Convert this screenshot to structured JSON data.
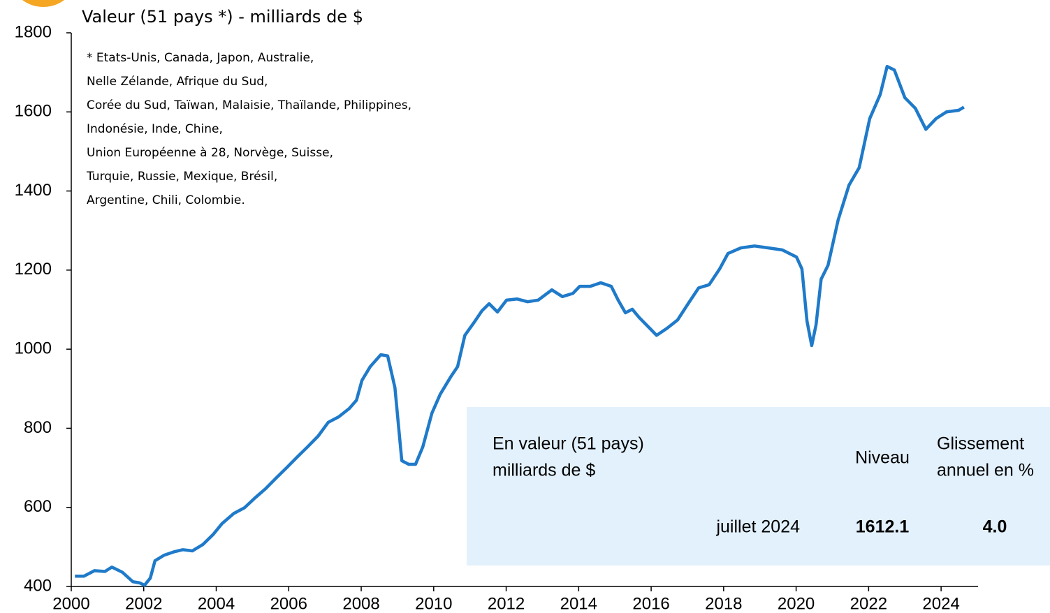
{
  "chart_data": {
    "type": "line",
    "title": "Valeur (51 pays *) - milliards de $",
    "note": [
      "* Etats-Unis, Canada, Japon, Australie,",
      "Nelle Zélande, Afrique du Sud,",
      "Corée du Sud, Taïwan, Malaisie, Thaïlande, Philippines,",
      "Indonésie, Inde, Chine,",
      "Union Européenne à 28, Norvège, Suisse,",
      "Turquie, Russie, Mexique, Brésil,",
      "Argentine, Chili, Colombie."
    ],
    "x": [
      2000.1,
      2000.35,
      2000.64,
      2000.93,
      2001.12,
      2001.41,
      2001.7,
      2001.89,
      2002.02,
      2002.18,
      2002.31,
      2002.56,
      2002.85,
      2003.08,
      2003.34,
      2003.63,
      2003.92,
      2004.16,
      2004.49,
      2004.78,
      2005.07,
      2005.36,
      2005.65,
      2005.94,
      2006.23,
      2006.52,
      2006.81,
      2007.09,
      2007.38,
      2007.67,
      2007.87,
      2008.02,
      2008.25,
      2008.54,
      2008.73,
      2008.93,
      2009.12,
      2009.31,
      2009.5,
      2009.7,
      2009.95,
      2010.18,
      2010.47,
      2010.66,
      2010.86,
      2011.14,
      2011.33,
      2011.53,
      2011.76,
      2012.01,
      2012.3,
      2012.59,
      2012.88,
      2013.26,
      2013.55,
      2013.84,
      2014.03,
      2014.32,
      2014.61,
      2014.9,
      2015.09,
      2015.29,
      2015.48,
      2015.67,
      2015.96,
      2016.15,
      2016.44,
      2016.73,
      2017.02,
      2017.31,
      2017.6,
      2017.89,
      2018.12,
      2018.47,
      2018.85,
      2019.24,
      2019.62,
      2020.01,
      2020.16,
      2020.3,
      2020.43,
      2020.55,
      2020.69,
      2020.88,
      2021.16,
      2021.46,
      2021.74,
      2022.03,
      2022.32,
      2022.51,
      2022.71,
      2023.0,
      2023.29,
      2023.58,
      2023.86,
      2024.15,
      2024.48,
      2024.63
    ],
    "series": [
      {
        "color": "#1f7ac9",
        "values": [
          426,
          426,
          440,
          438,
          449,
          436,
          412,
          409,
          403,
          421,
          465,
          479,
          488,
          493,
          490,
          506,
          532,
          559,
          585,
          599,
          624,
          647,
          674,
          700,
          727,
          753,
          780,
          815,
          829,
          850,
          871,
          921,
          956,
          986,
          983,
          903,
          718,
          709,
          709,
          753,
          838,
          886,
          930,
          956,
          1035,
          1071,
          1097,
          1115,
          1094,
          1124,
          1127,
          1120,
          1124,
          1150,
          1133,
          1141,
          1159,
          1159,
          1168,
          1159,
          1124,
          1092,
          1101,
          1080,
          1053,
          1035,
          1053,
          1074,
          1115,
          1155,
          1163,
          1203,
          1242,
          1256,
          1261,
          1256,
          1251,
          1233,
          1203,
          1071,
          1009,
          1062,
          1177,
          1212,
          1327,
          1415,
          1459,
          1583,
          1644,
          1715,
          1706,
          1636,
          1609,
          1556,
          1583,
          1600,
          1604,
          1612.1
        ]
      }
    ],
    "xlim": [
      2000,
      2025
    ],
    "xticks": [
      2000,
      2002,
      2004,
      2006,
      2008,
      2010,
      2012,
      2014,
      2016,
      2018,
      2020,
      2022,
      2024
    ],
    "ylim": [
      400,
      1800
    ],
    "yticks": [
      400,
      600,
      800,
      1000,
      1200,
      1400,
      1600,
      1800
    ]
  },
  "table": {
    "header": [
      [
        "En valeur (51 pays)",
        "milliards de $"
      ],
      [
        "Niveau"
      ],
      [
        "Glissement",
        "annuel en %"
      ]
    ],
    "row": [
      "juillet 2024",
      "1612.1",
      "4.0"
    ]
  }
}
